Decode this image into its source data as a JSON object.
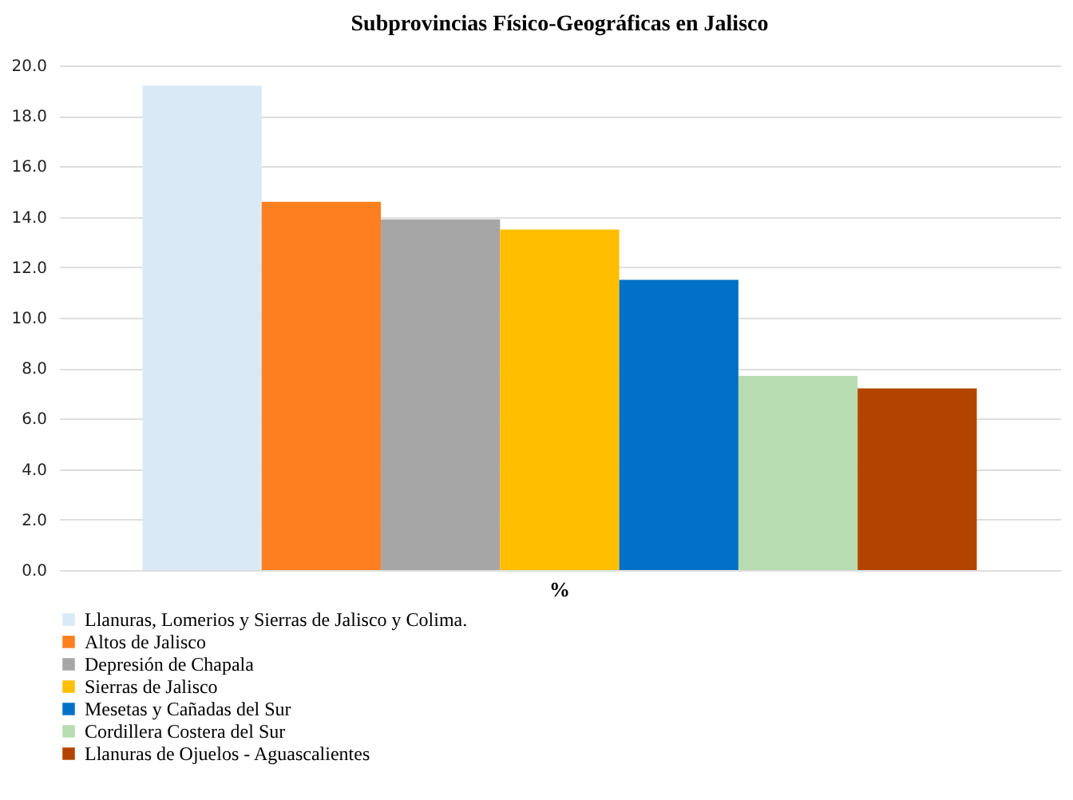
{
  "chart_data": {
    "type": "bar",
    "title": "Subprovincias Físico-Geográficas en Jalisco",
    "categories": [
      "%"
    ],
    "series": [
      {
        "name": "Llanuras, Lomerios y Sierras de Jalisco y Colima.",
        "color": "#d9eaf6",
        "values": [
          19.2
        ]
      },
      {
        "name": "Altos de Jalisco",
        "color": "#fe7f20",
        "values": [
          14.6
        ]
      },
      {
        "name": "Depresión de Chapala",
        "color": "#a6a6a6",
        "values": [
          13.9
        ]
      },
      {
        "name": "Sierras de Jalisco",
        "color": "#ffbf00",
        "values": [
          13.5
        ]
      },
      {
        "name": "Mesetas y Cañadas del Sur",
        "color": "#0071c6",
        "values": [
          11.5
        ]
      },
      {
        "name": "Cordillera Costera del Sur",
        "color": "#b8dcb2",
        "values": [
          7.7
        ]
      },
      {
        "name": "Llanuras de Ojuelos - Aguascalientes",
        "color": "#b34400",
        "values": [
          7.2
        ]
      }
    ],
    "ylim": [
      0,
      20
    ],
    "yticks": [
      {
        "value": 0,
        "label": "0.0"
      },
      {
        "value": 2,
        "label": "2.0"
      },
      {
        "value": 4,
        "label": "4.0"
      },
      {
        "value": 6,
        "label": "6.0"
      },
      {
        "value": 8,
        "label": "8.0"
      },
      {
        "value": 10,
        "label": "10.0"
      },
      {
        "value": 12,
        "label": "12.0"
      },
      {
        "value": 14,
        "label": "14.0"
      },
      {
        "value": 16,
        "label": "16.0"
      },
      {
        "value": 18,
        "label": "18.0"
      },
      {
        "value": 20,
        "label": "20.0"
      }
    ],
    "grid": "y",
    "legend": "bottom"
  }
}
